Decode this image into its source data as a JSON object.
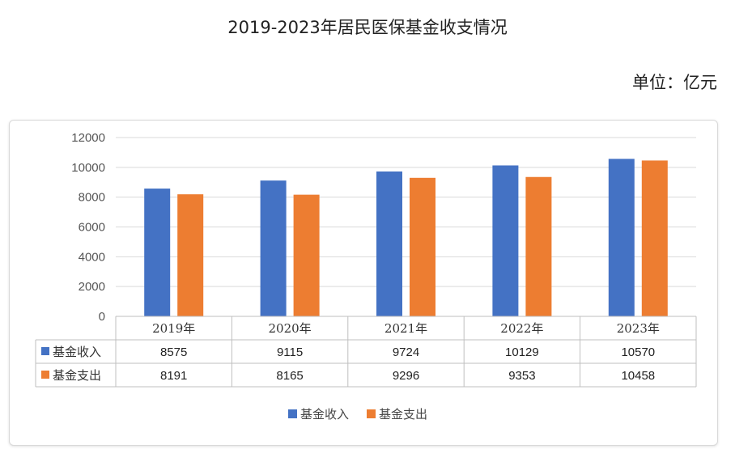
{
  "page": {
    "title": "2019-2023年居民医保基金收支情况",
    "unit": "单位：亿元"
  },
  "chart_data": {
    "type": "bar",
    "categories": [
      "2019年",
      "2020年",
      "2021年",
      "2022年",
      "2023年"
    ],
    "series": [
      {
        "name": "基金收入",
        "color": "#4472c4",
        "values": [
          8575,
          9115,
          9724,
          10129,
          10570
        ]
      },
      {
        "name": "基金支出",
        "color": "#ed7d31",
        "values": [
          8191,
          8165,
          9296,
          9353,
          10458
        ]
      }
    ],
    "title": "2019-2023年居民医保基金收支情况",
    "ylim": [
      0,
      12000
    ],
    "yticks": [
      0,
      2000,
      4000,
      6000,
      8000,
      10000,
      12000
    ],
    "grid": true,
    "legend_position": "bottom",
    "data_table": true
  }
}
